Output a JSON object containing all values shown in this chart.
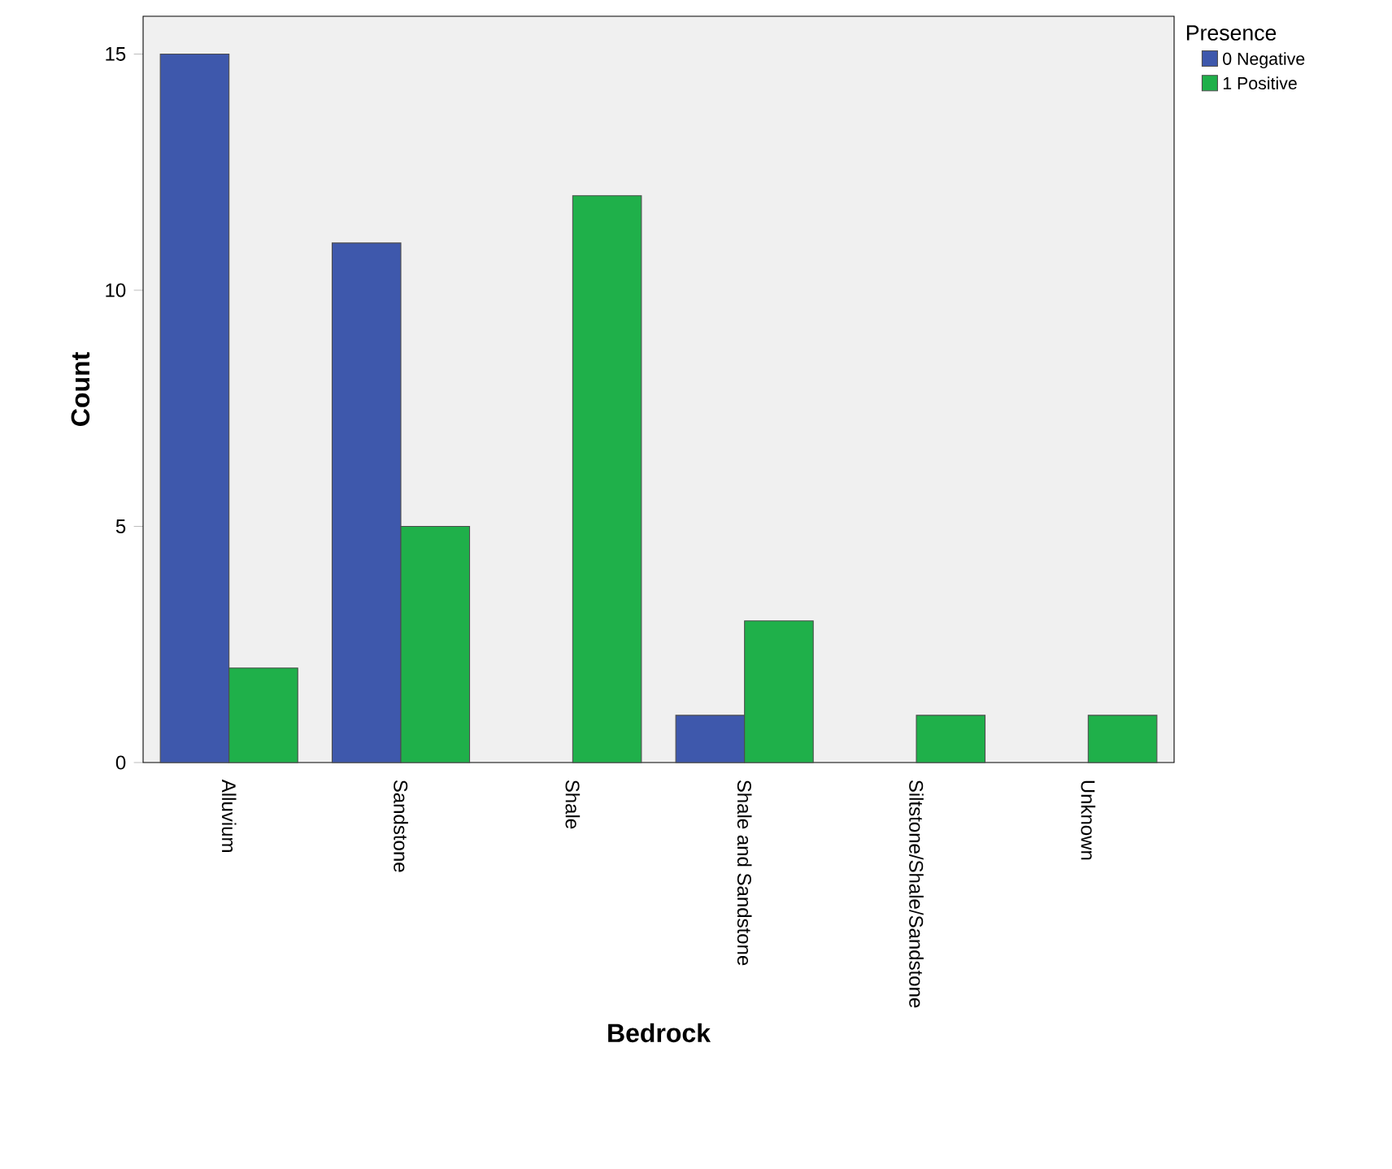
{
  "chart_data": {
    "type": "bar",
    "xlabel": "Bedrock",
    "ylabel": "Count",
    "legend_title": "Presence",
    "categories": [
      "Alluvium",
      "Sandstone",
      "Shale",
      "Shale and Sandstone",
      "Siltstone/Shale/Sandstone",
      "Unknown"
    ],
    "series": [
      {
        "name": "0 Negative",
        "color": "#3e58ac",
        "values": [
          15,
          11,
          null,
          1,
          null,
          null
        ]
      },
      {
        "name": "1 Positive",
        "color": "#1fb04a",
        "values": [
          2,
          5,
          12,
          3,
          1,
          1
        ]
      }
    ],
    "ylim": [
      0,
      15.8
    ],
    "yticks": [
      0,
      5,
      10,
      15
    ],
    "legend": "top right"
  }
}
